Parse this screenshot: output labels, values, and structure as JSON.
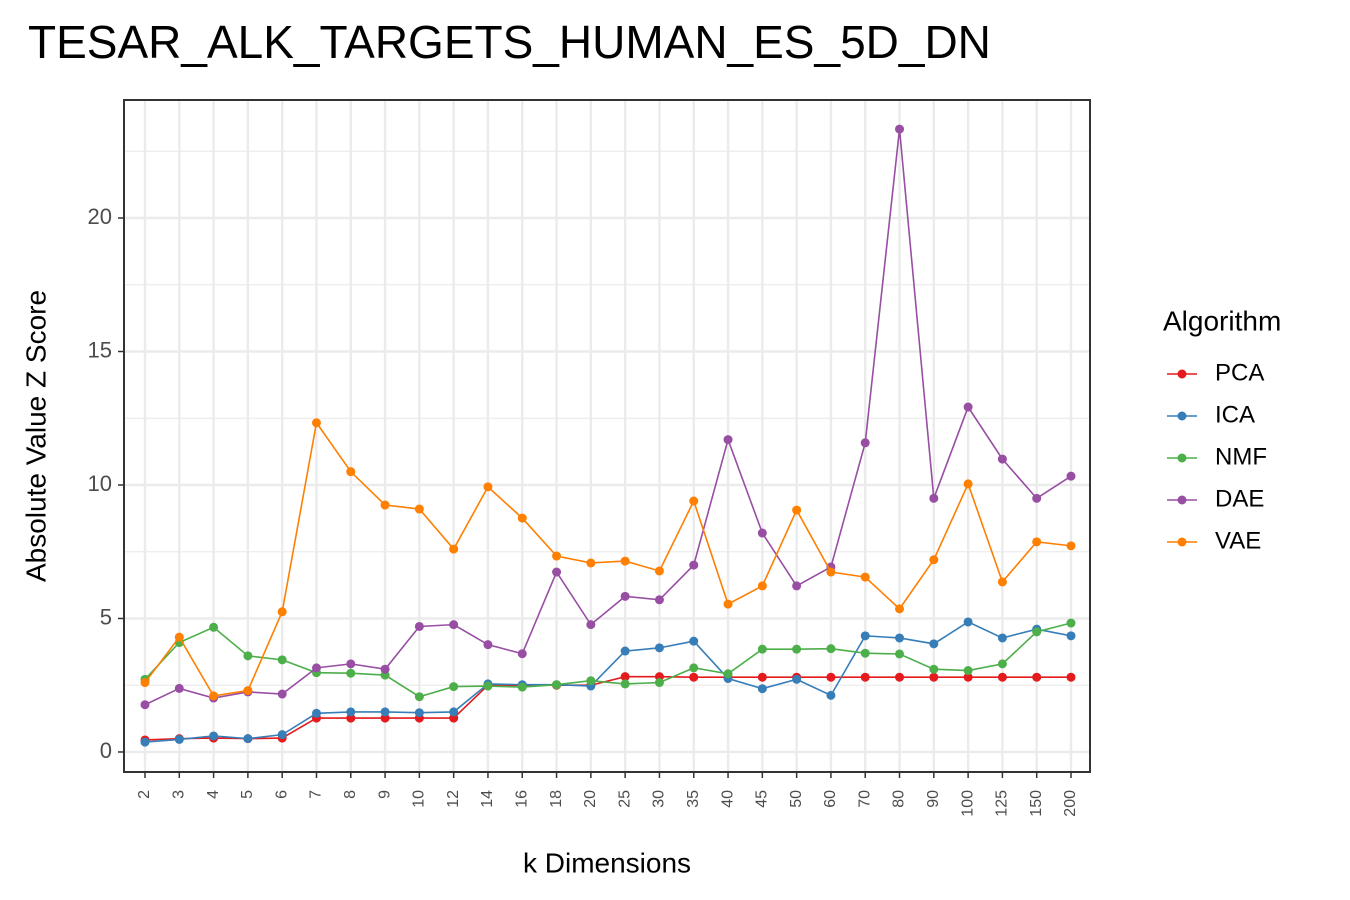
{
  "chart_data": {
    "type": "line",
    "title": "TESAR_ALK_TARGETS_HUMAN_ES_5D_DN",
    "x_label": "k Dimensions",
    "y_label": "Absolute Value Z Score",
    "legend_title": "Algorithm",
    "legend_position": "right",
    "grid": true,
    "categories": [
      "2",
      "3",
      "4",
      "5",
      "6",
      "7",
      "8",
      "9",
      "10",
      "12",
      "14",
      "16",
      "18",
      "20",
      "25",
      "30",
      "35",
      "40",
      "45",
      "50",
      "60",
      "70",
      "80",
      "90",
      "100",
      "125",
      "150",
      "200"
    ],
    "ylim": [
      -0.75,
      24.42
    ],
    "yticks": [
      0,
      5,
      10,
      15,
      20
    ],
    "series": [
      {
        "name": "PCA",
        "color": "#e41a1c",
        "values": [
          0.45,
          0.5,
          0.52,
          0.5,
          0.52,
          1.27,
          1.27,
          1.27,
          1.27,
          1.27,
          2.5,
          2.5,
          2.5,
          2.5,
          2.82,
          2.82,
          2.8,
          2.8,
          2.8,
          2.8,
          2.8,
          2.8,
          2.8,
          2.8,
          2.8,
          2.8,
          2.8,
          2.8
        ]
      },
      {
        "name": "ICA",
        "color": "#377eb8",
        "values": [
          0.37,
          0.47,
          0.6,
          0.5,
          0.65,
          1.45,
          1.5,
          1.5,
          1.47,
          1.5,
          2.55,
          2.52,
          2.52,
          2.47,
          3.78,
          3.9,
          4.15,
          2.75,
          2.37,
          2.72,
          2.12,
          4.35,
          4.27,
          4.05,
          4.87,
          4.27,
          4.6,
          4.35
        ]
      },
      {
        "name": "NMF",
        "color": "#4daf4a",
        "values": [
          2.72,
          4.1,
          4.67,
          3.6,
          3.45,
          2.97,
          2.95,
          2.88,
          2.07,
          2.45,
          2.47,
          2.43,
          2.52,
          2.67,
          2.55,
          2.6,
          3.15,
          2.93,
          3.85,
          3.85,
          3.87,
          3.7,
          3.67,
          3.1,
          3.05,
          3.3,
          4.5,
          4.83
        ]
      },
      {
        "name": "DAE",
        "color": "#984ea3",
        "values": [
          1.77,
          2.38,
          2.02,
          2.25,
          2.17,
          3.15,
          3.3,
          3.1,
          4.7,
          4.77,
          4.02,
          3.68,
          6.74,
          4.77,
          5.83,
          5.7,
          7.0,
          11.7,
          8.2,
          6.22,
          6.93,
          11.58,
          23.33,
          9.5,
          12.92,
          10.97,
          9.5,
          10.33
        ]
      },
      {
        "name": "VAE",
        "color": "#ff7f00",
        "values": [
          2.6,
          4.3,
          2.1,
          2.3,
          5.25,
          12.33,
          10.5,
          9.25,
          9.1,
          7.6,
          9.93,
          8.76,
          7.34,
          7.08,
          7.15,
          6.78,
          9.4,
          5.54,
          6.22,
          9.06,
          6.74,
          6.55,
          5.36,
          7.2,
          10.04,
          6.37,
          7.87,
          7.72
        ]
      }
    ]
  }
}
